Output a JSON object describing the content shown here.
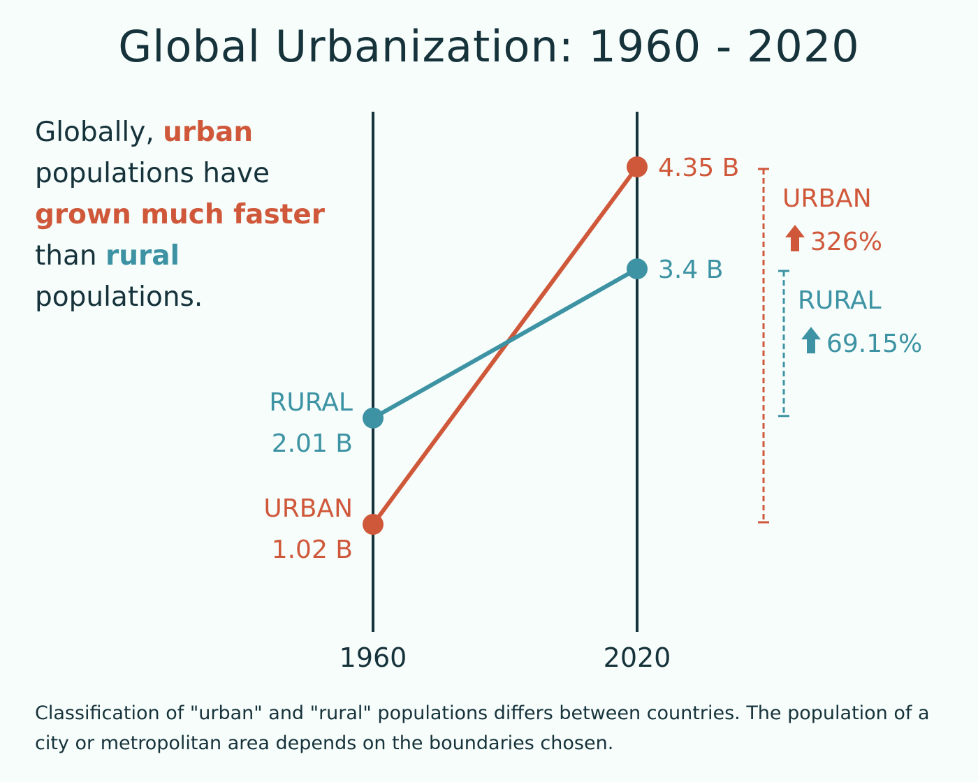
{
  "title": "Global Urbanization: 1960 - 2020",
  "intro": {
    "p1": "Globally, ",
    "urban_word": "urban",
    "p2": " populations have ",
    "emph": "grown much faster",
    "p3": " than ",
    "rural_word": "rural",
    "p4": " populations."
  },
  "footnote": "Classification of \"urban\" and \"rural\" populations differs between countries. The population of a city or metropolitan area depends on the boundaries chosen.",
  "colors": {
    "urban": "#d0583a",
    "rural": "#3d93a3",
    "axis": "#16323a"
  },
  "chart_data": {
    "type": "line",
    "x": [
      "1960",
      "2020"
    ],
    "series": [
      {
        "name": "URBAN",
        "values": [
          1.02,
          4.35
        ],
        "labels": [
          "1.02 B",
          "4.35 B"
        ],
        "change_label": "URBAN",
        "change": "326%",
        "color": "#d0583a"
      },
      {
        "name": "RURAL",
        "values": [
          2.01,
          3.4
        ],
        "labels": [
          "2.01 B",
          "3.4 B"
        ],
        "change_label": "RURAL",
        "change": "69.15%",
        "color": "#3d93a3"
      }
    ],
    "title": "Global Urbanization: 1960 - 2020",
    "xlabel": "",
    "ylabel": "",
    "grid": false
  }
}
